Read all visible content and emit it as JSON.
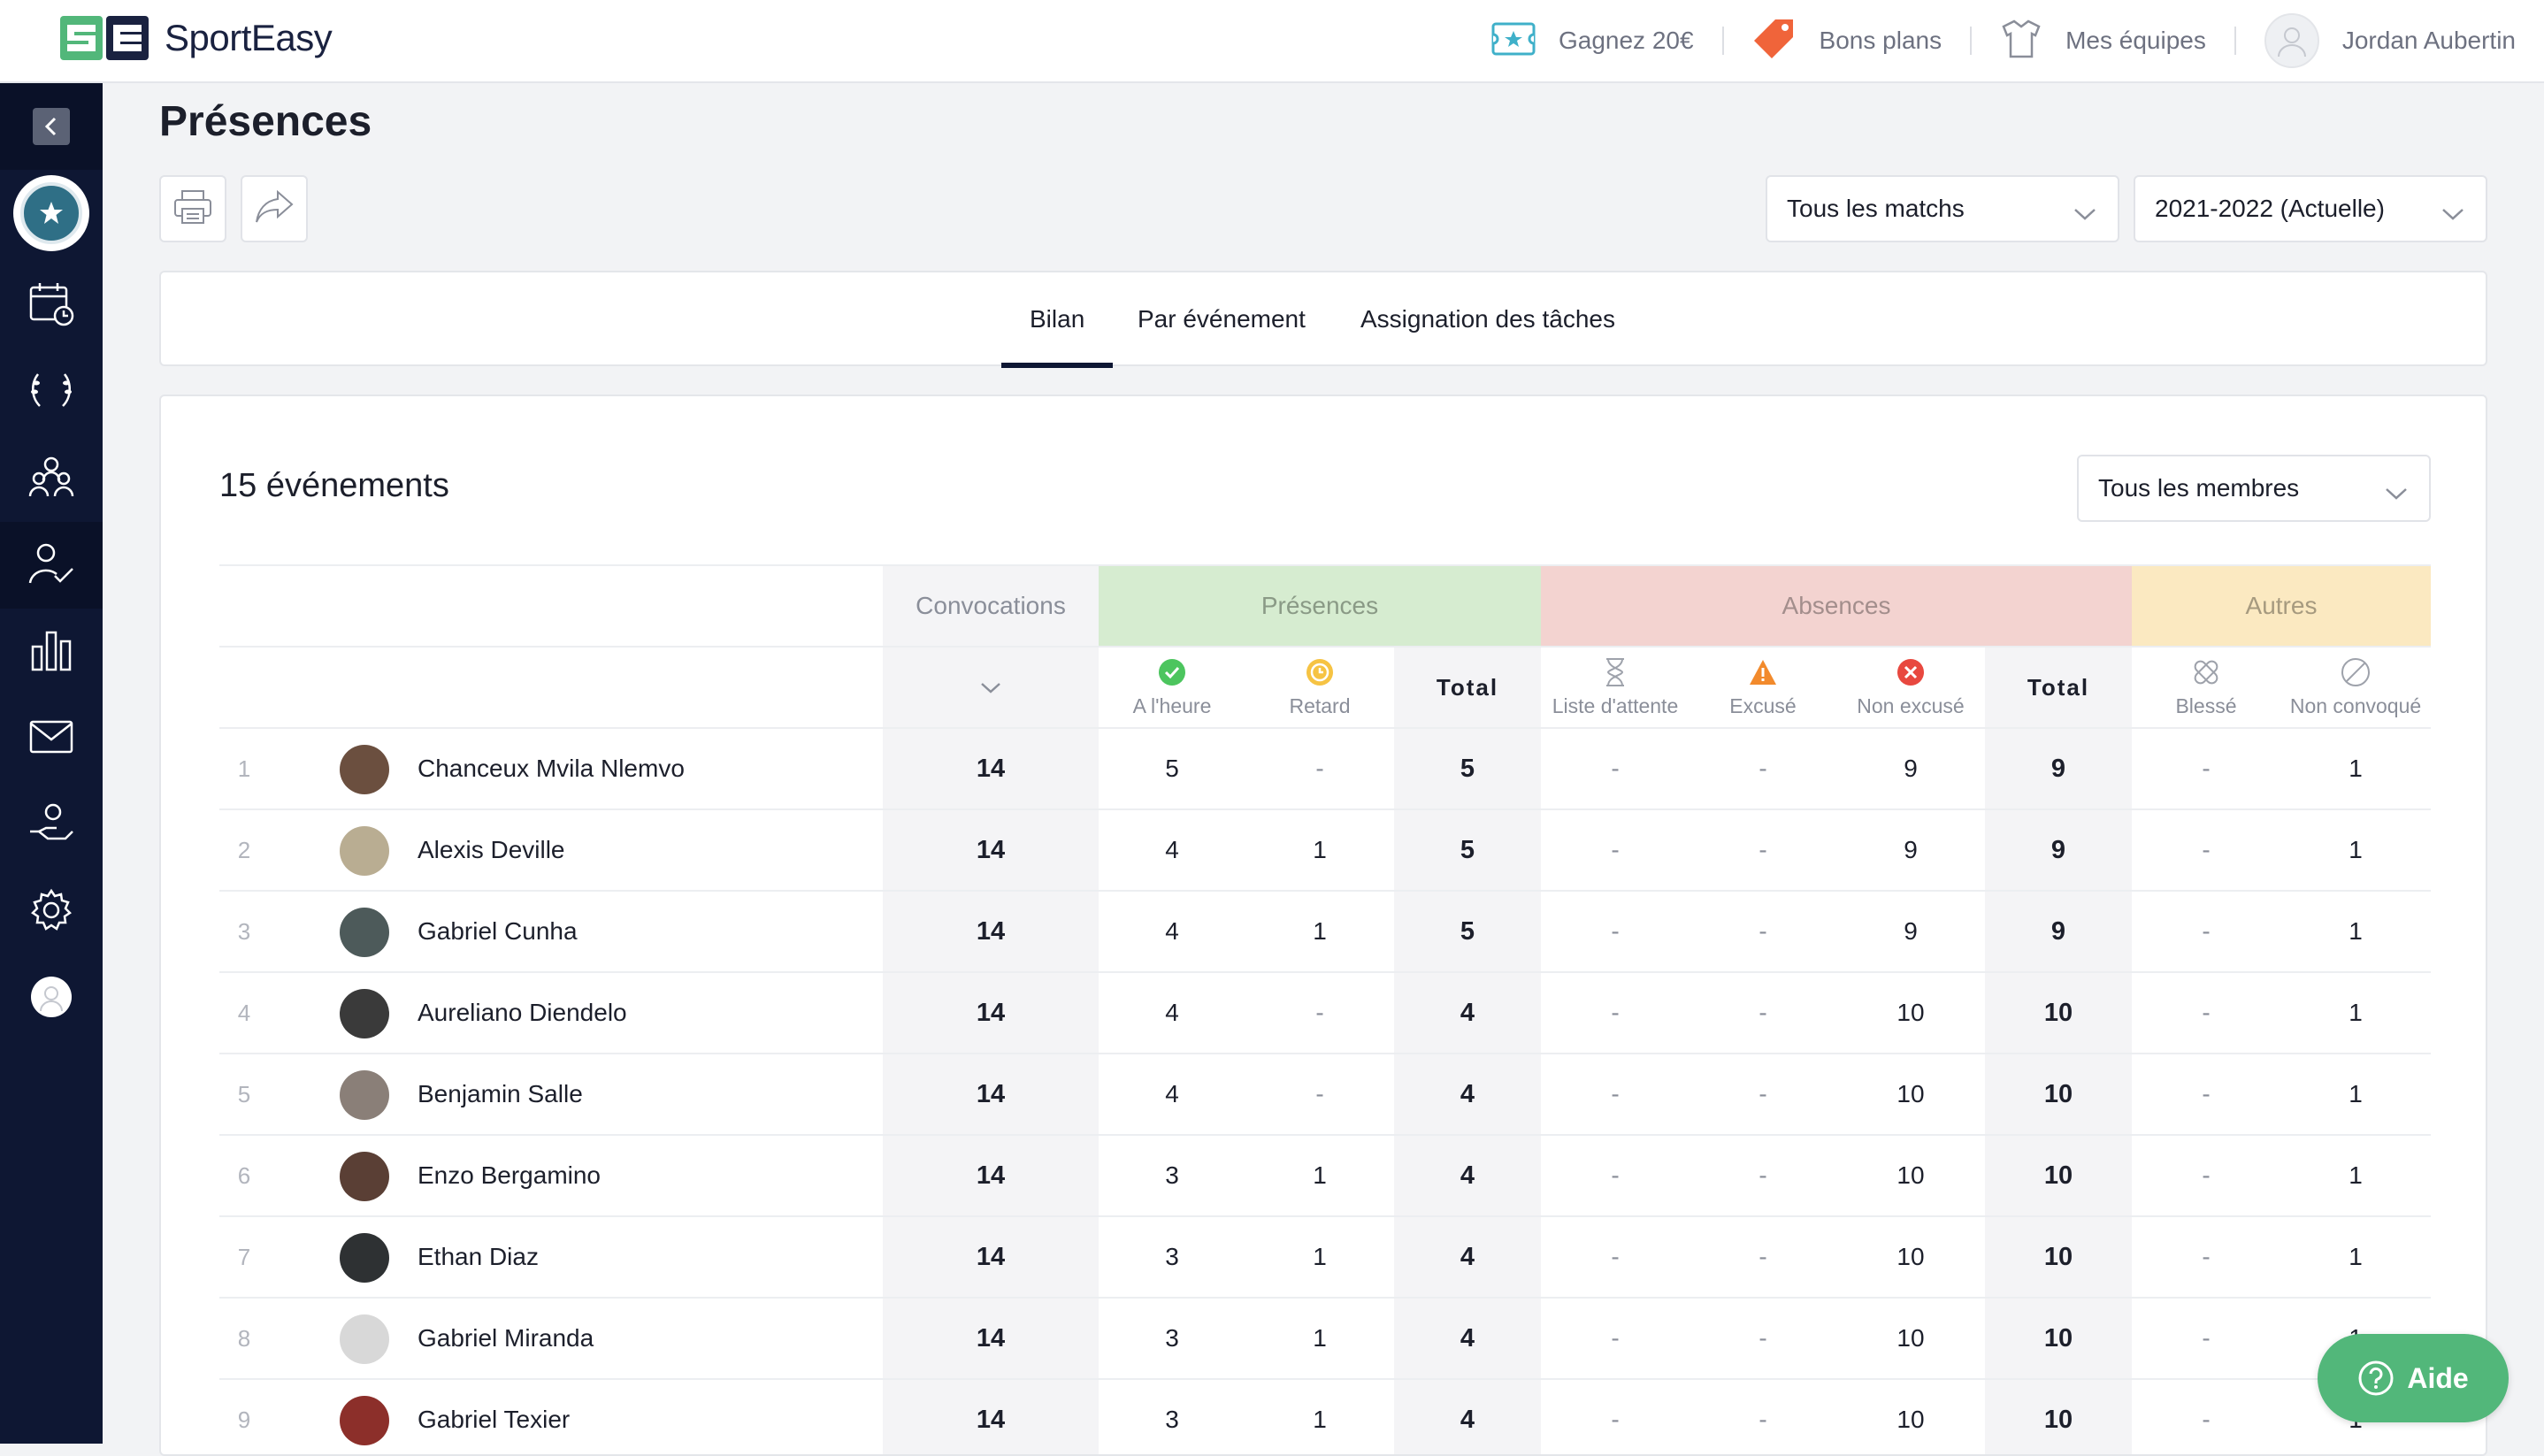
{
  "brand": {
    "name": "SportEasy",
    "mark": "SE"
  },
  "topnav": [
    {
      "label": "Gagnez 20€",
      "icon": "ticket-icon"
    },
    {
      "label": "Bons plans",
      "icon": "price-tag-icon"
    },
    {
      "label": "Mes équipes",
      "icon": "jersey-icon"
    },
    {
      "label": "Jordan Aubertin",
      "icon": "user-avatar-icon"
    }
  ],
  "sidebar": {
    "collapse_icon": "chevron-left-icon",
    "items": [
      {
        "icon": "team-badge-icon",
        "active": false
      },
      {
        "icon": "calendar-icon",
        "active": false
      },
      {
        "icon": "laurel-icon",
        "active": false
      },
      {
        "icon": "team-members-icon",
        "active": false
      },
      {
        "icon": "attendance-icon",
        "active": true
      },
      {
        "icon": "stats-icon",
        "active": false
      },
      {
        "icon": "mail-icon",
        "active": false
      },
      {
        "icon": "hand-user-icon",
        "active": false
      },
      {
        "icon": "settings-icon",
        "active": false
      },
      {
        "icon": "profile-icon",
        "active": false
      }
    ]
  },
  "page": {
    "title": "Présences"
  },
  "toolbar": {
    "print_icon": "print-icon",
    "share_icon": "share-icon"
  },
  "filters": {
    "match_filter": "Tous les matchs",
    "season": "2021-2022 (Actuelle)",
    "members": "Tous les membres"
  },
  "tabs": [
    {
      "label": "Bilan",
      "active": true
    },
    {
      "label": "Par événement",
      "active": false
    },
    {
      "label": "Assignation des tâches",
      "active": false
    }
  ],
  "summary": {
    "events_count": "15 événements"
  },
  "table": {
    "groups": {
      "convocations": "Convocations",
      "presences": "Présences",
      "absences": "Absences",
      "autres": "Autres"
    },
    "sub_headers": {
      "on_time": "A l'heure",
      "late": "Retard",
      "total": "Total",
      "waiting_list": "Liste d'attente",
      "excused": "Excusé",
      "not_excused": "Non excusé",
      "injured": "Blessé",
      "not_called": "Non convoqué"
    },
    "rows": [
      {
        "rank": "1",
        "name": "Chanceux Mvila Nlemvo",
        "conv": "14",
        "on_time": "5",
        "late": "-",
        "pres_total": "5",
        "waiting": "-",
        "excused": "-",
        "not_excused": "9",
        "abs_total": "9",
        "injured": "-",
        "not_called": "1",
        "avatar_color": "#6b4f3f"
      },
      {
        "rank": "2",
        "name": "Alexis Deville",
        "conv": "14",
        "on_time": "4",
        "late": "1",
        "pres_total": "5",
        "waiting": "-",
        "excused": "-",
        "not_excused": "9",
        "abs_total": "9",
        "injured": "-",
        "not_called": "1",
        "avatar_color": "#b9ad92"
      },
      {
        "rank": "3",
        "name": "Gabriel Cunha",
        "conv": "14",
        "on_time": "4",
        "late": "1",
        "pres_total": "5",
        "waiting": "-",
        "excused": "-",
        "not_excused": "9",
        "abs_total": "9",
        "injured": "-",
        "not_called": "1",
        "avatar_color": "#4d5a5a"
      },
      {
        "rank": "4",
        "name": "Aureliano Diendelo",
        "conv": "14",
        "on_time": "4",
        "late": "-",
        "pres_total": "4",
        "waiting": "-",
        "excused": "-",
        "not_excused": "10",
        "abs_total": "10",
        "injured": "-",
        "not_called": "1",
        "avatar_color": "#3a3a3a"
      },
      {
        "rank": "5",
        "name": "Benjamin Salle",
        "conv": "14",
        "on_time": "4",
        "late": "-",
        "pres_total": "4",
        "waiting": "-",
        "excused": "-",
        "not_excused": "10",
        "abs_total": "10",
        "injured": "-",
        "not_called": "1",
        "avatar_color": "#8a7f78"
      },
      {
        "rank": "6",
        "name": "Enzo Bergamino",
        "conv": "14",
        "on_time": "3",
        "late": "1",
        "pres_total": "4",
        "waiting": "-",
        "excused": "-",
        "not_excused": "10",
        "abs_total": "10",
        "injured": "-",
        "not_called": "1",
        "avatar_color": "#5a3f35"
      },
      {
        "rank": "7",
        "name": "Ethan Diaz",
        "conv": "14",
        "on_time": "3",
        "late": "1",
        "pres_total": "4",
        "waiting": "-",
        "excused": "-",
        "not_excused": "10",
        "abs_total": "10",
        "injured": "-",
        "not_called": "1",
        "avatar_color": "#2e3133"
      },
      {
        "rank": "8",
        "name": "Gabriel Miranda",
        "conv": "14",
        "on_time": "3",
        "late": "1",
        "pres_total": "4",
        "waiting": "-",
        "excused": "-",
        "not_excused": "10",
        "abs_total": "10",
        "injured": "-",
        "not_called": "1",
        "avatar_color": "#d8d8d8"
      },
      {
        "rank": "9",
        "name": "Gabriel Texier",
        "conv": "14",
        "on_time": "3",
        "late": "1",
        "pres_total": "4",
        "waiting": "-",
        "excused": "-",
        "not_excused": "10",
        "abs_total": "10",
        "injured": "-",
        "not_called": "1",
        "avatar_color": "#8c2f2a"
      }
    ]
  },
  "help": {
    "label": "Aide",
    "icon": "question-circle-icon"
  },
  "colors": {
    "sidebar_bg": "#0e1733",
    "presences_bg": "#d6ecd0",
    "absences_bg": "#f3d3d0",
    "autres_bg": "#fbe9c1",
    "help_bg": "#52b77a"
  }
}
